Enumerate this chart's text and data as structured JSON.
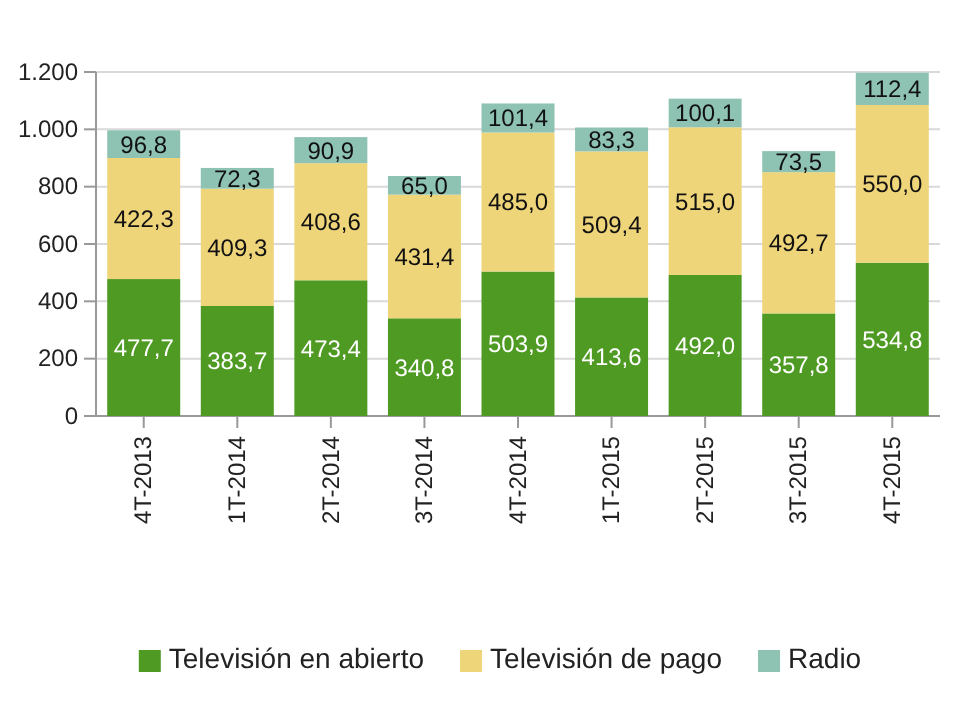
{
  "chart_data": {
    "type": "bar",
    "stacked": true,
    "categories": [
      "4T-2013",
      "1T-2014",
      "2T-2014",
      "3T-2014",
      "4T-2014",
      "1T-2015",
      "2T-2015",
      "3T-2015",
      "4T-2015"
    ],
    "series": [
      {
        "name": "Televisión en abierto",
        "color": "#4e9a22",
        "values": [
          477.7,
          383.7,
          473.4,
          340.8,
          503.9,
          413.6,
          492.0,
          357.8,
          534.8
        ],
        "value_labels": [
          "477,7",
          "383,7",
          "473,4",
          "340,8",
          "503,9",
          "413,6",
          "492,0",
          "357,8",
          "534,8"
        ]
      },
      {
        "name": "Televisión de pago",
        "color": "#efd57a",
        "values": [
          422.3,
          409.3,
          408.6,
          431.4,
          485.0,
          509.4,
          515.0,
          492.7,
          550.0
        ],
        "value_labels": [
          "422,3",
          "409,3",
          "408,6",
          "431,4",
          "485,0",
          "509,4",
          "515,0",
          "492,7",
          "550,0"
        ]
      },
      {
        "name": "Radio",
        "color": "#8ec3b3",
        "values": [
          96.8,
          72.3,
          90.9,
          65.0,
          101.4,
          83.3,
          100.1,
          73.5,
          112.4
        ],
        "value_labels": [
          "96,8",
          "72,3",
          "90,9",
          "65,0",
          "101,4",
          "83,3",
          "100,1",
          "73,5",
          "112,4"
        ]
      }
    ],
    "ylim": [
      0,
      1200
    ],
    "yticks": [
      0,
      200,
      400,
      600,
      800,
      {
        "value": 1000,
        "label": "1.000"
      },
      {
        "value": 1200,
        "label": "1.200"
      }
    ],
    "grid": "y",
    "legend": "bottom"
  }
}
